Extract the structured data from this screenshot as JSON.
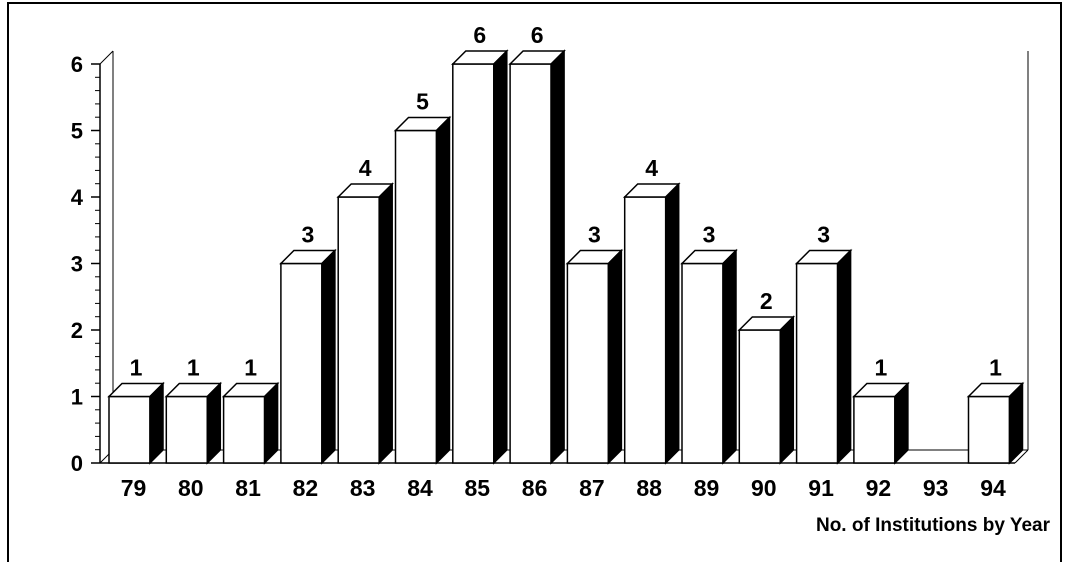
{
  "chart_data": {
    "type": "bar",
    "title": "",
    "xlabel": "No. of Institutions by Year",
    "ylabel": "",
    "categories": [
      "79",
      "80",
      "81",
      "82",
      "83",
      "84",
      "85",
      "86",
      "87",
      "88",
      "89",
      "90",
      "91",
      "92",
      "93",
      "94"
    ],
    "values": [
      1,
      1,
      1,
      3,
      4,
      5,
      6,
      6,
      3,
      4,
      3,
      2,
      3,
      1,
      0,
      1
    ],
    "data_labels": [
      "1",
      "1",
      "1",
      "3",
      "4",
      "5",
      "6",
      "6",
      "3",
      "4",
      "3",
      "2",
      "3",
      "1",
      "",
      "1"
    ],
    "ylim": [
      0,
      6
    ],
    "yticks": [
      0,
      1,
      2,
      3,
      4,
      5,
      6
    ],
    "grid": false,
    "legend": "none",
    "style": "3d-bar",
    "colors": {
      "bar_face": "#ffffff",
      "bar_side": "#000000",
      "outline": "#000000"
    }
  }
}
